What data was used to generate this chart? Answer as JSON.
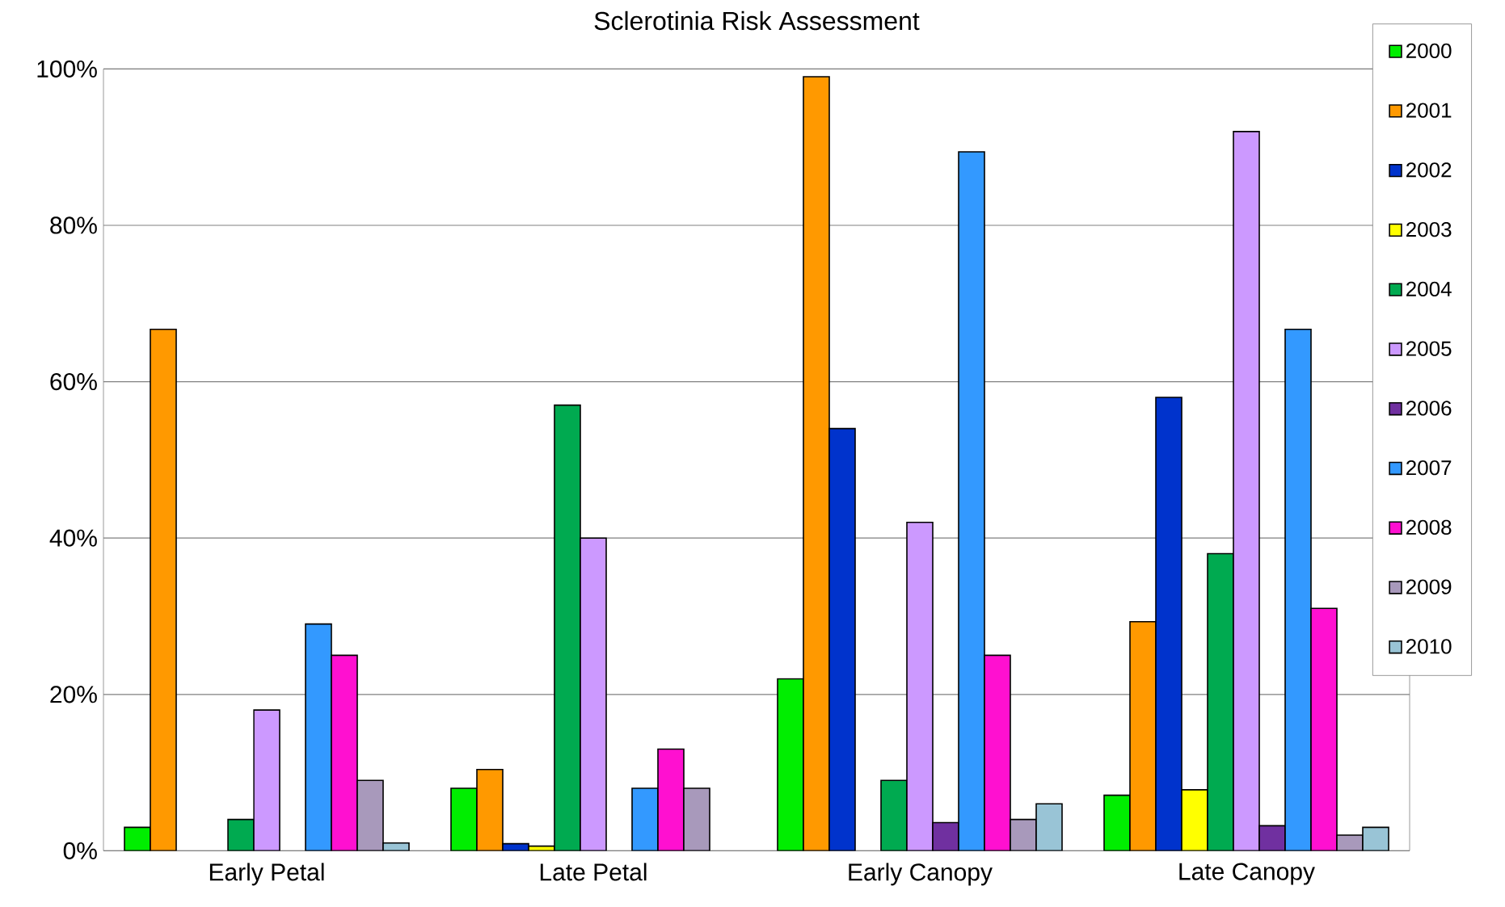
{
  "chart_data": {
    "type": "bar",
    "title": "Sclerotinia Risk Assessment",
    "categories": [
      "Early Petal",
      "Late Petal",
      "Early Canopy",
      "Late Canopy"
    ],
    "series": [
      {
        "name": "2000",
        "color": "#00ee00",
        "values": [
          3,
          8,
          22,
          7.1
        ]
      },
      {
        "name": "2001",
        "color": "#ff9900",
        "values": [
          66.7,
          10.4,
          99,
          29.3
        ]
      },
      {
        "name": "2002",
        "color": "#0033cc",
        "values": [
          null,
          0.9,
          54,
          58
        ]
      },
      {
        "name": "2003",
        "color": "#ffff00",
        "values": [
          null,
          0.6,
          null,
          7.8
        ]
      },
      {
        "name": "2004",
        "color": "#00aa50",
        "values": [
          4,
          57,
          9,
          38
        ]
      },
      {
        "name": "2005",
        "color": "#cc99ff",
        "values": [
          18,
          40,
          42,
          92
        ]
      },
      {
        "name": "2006",
        "color": "#7030a0",
        "values": [
          null,
          null,
          3.6,
          3.2
        ]
      },
      {
        "name": "2007",
        "color": "#3399ff",
        "values": [
          29,
          8,
          89.4,
          66.7
        ]
      },
      {
        "name": "2008",
        "color": "#ff10d0",
        "values": [
          25,
          13,
          25,
          31
        ]
      },
      {
        "name": "2009",
        "color": "#a899bb",
        "values": [
          9,
          8,
          4,
          2
        ]
      },
      {
        "name": "2010",
        "color": "#99c4d6",
        "values": [
          1,
          null,
          6,
          3
        ]
      }
    ],
    "ylim": [
      0,
      100
    ],
    "yticks": [
      {
        "value": 0,
        "label": "0%"
      },
      {
        "value": 20,
        "label": "20%"
      },
      {
        "value": 40,
        "label": "40%"
      },
      {
        "value": 60,
        "label": "60%"
      },
      {
        "value": 80,
        "label": "80%"
      },
      {
        "value": 100,
        "label": "100%"
      }
    ],
    "grid": "y",
    "legend": "right"
  }
}
